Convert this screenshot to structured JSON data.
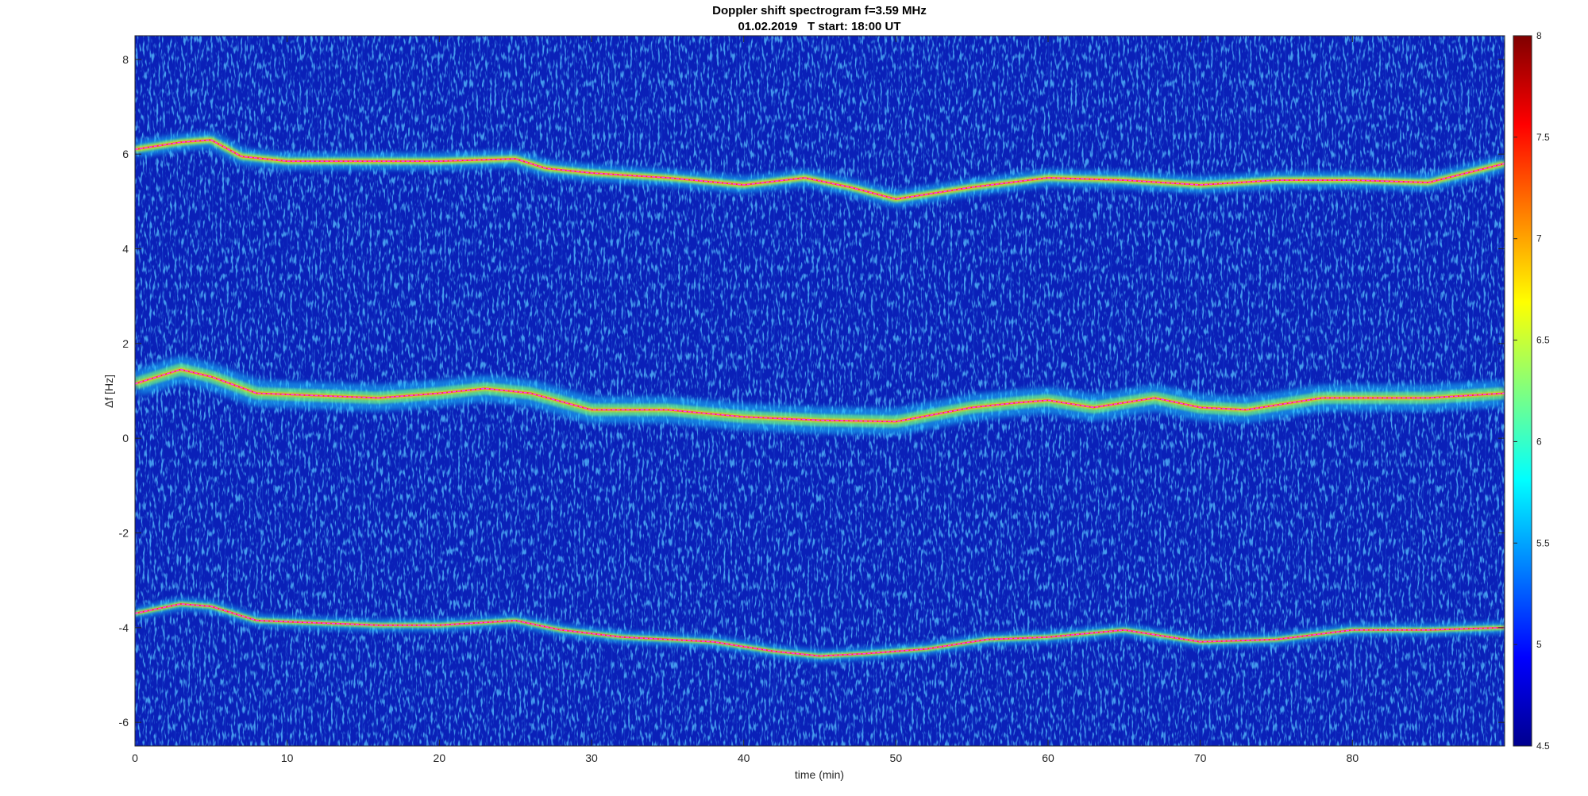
{
  "chart_data": {
    "type": "heatmap",
    "title": "Doppler shift spectrogram f=3.59 MHz",
    "subtitle": "01.02.2019   T start: 18:00 UT",
    "xlabel": "time (min)",
    "ylabel": "Δf [Hz]",
    "xlim": [
      0,
      90
    ],
    "ylim": [
      -6.5,
      8.5
    ],
    "xticks": [
      0,
      10,
      20,
      30,
      40,
      50,
      60,
      70,
      80
    ],
    "yticks": [
      -6,
      -4,
      -2,
      0,
      2,
      4,
      6,
      8
    ],
    "colorbar": {
      "colormap": "jet",
      "range": [
        4.5,
        8
      ],
      "ticks": [
        4.5,
        5,
        5.5,
        6,
        6.5,
        7,
        7.5,
        8
      ]
    },
    "grid": false,
    "series": [
      {
        "points": [
          [
            0,
            6.1
          ],
          [
            3,
            6.25
          ],
          [
            5,
            6.3
          ],
          [
            7,
            5.95
          ],
          [
            10,
            5.85
          ],
          [
            15,
            5.85
          ],
          [
            20,
            5.85
          ],
          [
            25,
            5.9
          ],
          [
            27,
            5.7
          ],
          [
            30,
            5.6
          ],
          [
            35,
            5.5
          ],
          [
            40,
            5.35
          ],
          [
            44,
            5.5
          ],
          [
            47,
            5.3
          ],
          [
            50,
            5.05
          ],
          [
            55,
            5.3
          ],
          [
            60,
            5.5
          ],
          [
            65,
            5.45
          ],
          [
            70,
            5.35
          ],
          [
            75,
            5.45
          ],
          [
            80,
            5.45
          ],
          [
            85,
            5.4
          ],
          [
            90,
            5.8
          ]
        ]
      },
      {
        "points": [
          [
            0,
            1.15
          ],
          [
            3,
            1.45
          ],
          [
            5,
            1.3
          ],
          [
            8,
            0.95
          ],
          [
            12,
            0.9
          ],
          [
            16,
            0.85
          ],
          [
            20,
            0.95
          ],
          [
            23,
            1.05
          ],
          [
            26,
            0.95
          ],
          [
            30,
            0.6
          ],
          [
            35,
            0.6
          ],
          [
            40,
            0.45
          ],
          [
            45,
            0.38
          ],
          [
            50,
            0.35
          ],
          [
            55,
            0.65
          ],
          [
            58,
            0.75
          ],
          [
            60,
            0.8
          ],
          [
            63,
            0.65
          ],
          [
            67,
            0.85
          ],
          [
            70,
            0.65
          ],
          [
            73,
            0.6
          ],
          [
            78,
            0.85
          ],
          [
            85,
            0.85
          ],
          [
            90,
            0.95
          ]
        ]
      },
      {
        "points": [
          [
            0,
            -3.7
          ],
          [
            3,
            -3.5
          ],
          [
            5,
            -3.55
          ],
          [
            8,
            -3.85
          ],
          [
            12,
            -3.9
          ],
          [
            16,
            -3.95
          ],
          [
            20,
            -3.95
          ],
          [
            25,
            -3.85
          ],
          [
            28,
            -4.05
          ],
          [
            32,
            -4.2
          ],
          [
            38,
            -4.3
          ],
          [
            42,
            -4.5
          ],
          [
            45,
            -4.6
          ],
          [
            48,
            -4.55
          ],
          [
            52,
            -4.45
          ],
          [
            56,
            -4.25
          ],
          [
            60,
            -4.2
          ],
          [
            65,
            -4.05
          ],
          [
            70,
            -4.3
          ],
          [
            75,
            -4.25
          ],
          [
            80,
            -4.05
          ],
          [
            85,
            -4.05
          ],
          [
            90,
            -4.0
          ]
        ]
      }
    ]
  }
}
